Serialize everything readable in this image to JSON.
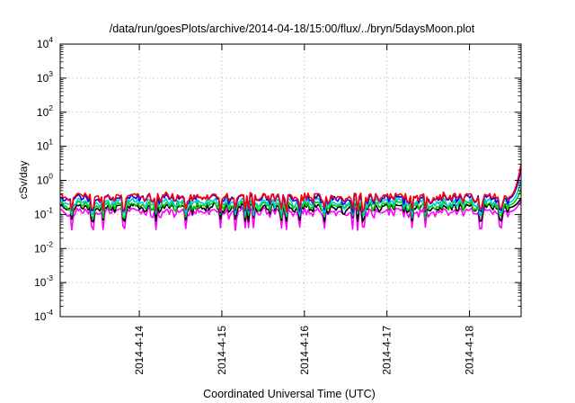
{
  "chart_data": {
    "type": "line",
    "title": "/data/run/goesPlots/archive/2014-04-18/15:00/flux/../bryn/5daysMoon.plot",
    "xlabel": "Coordinated Universal Time (UTC)",
    "ylabel": "cSv/day",
    "yscale": "log",
    "ylim": [
      0.0001,
      10000
    ],
    "xlim": [
      "2014-04-13 01:00",
      "2014-04-18 15:00"
    ],
    "x_ticks": [
      "2014-4-14",
      "2014-4-15",
      "2014-4-16",
      "2014-4-17",
      "2014-4-18"
    ],
    "y_ticks": [
      {
        "base": "10",
        "exp": "4"
      },
      {
        "base": "10",
        "exp": "3"
      },
      {
        "base": "10",
        "exp": "2"
      },
      {
        "base": "10",
        "exp": "1"
      },
      {
        "base": "10",
        "exp": "0"
      },
      {
        "base": "10",
        "exp": "-1"
      },
      {
        "base": "10",
        "exp": "-2"
      },
      {
        "base": "10",
        "exp": "-3"
      },
      {
        "base": "10",
        "exp": "-4"
      }
    ],
    "grid": true,
    "series": [
      {
        "color": "#ff00ff",
        "level": 0.12,
        "end": 0.25,
        "dip": 0.04
      },
      {
        "color": "#000000",
        "level": 0.16,
        "end": 0.3,
        "dip": 0.07
      },
      {
        "color": "#00cc00",
        "level": 0.19,
        "end": 0.55,
        "dip": 0.09
      },
      {
        "color": "#00cccc",
        "level": 0.23,
        "end": 0.95,
        "dip": 0.1
      },
      {
        "color": "#0000ff",
        "level": 0.3,
        "end": 2.2,
        "dip": 0.13
      },
      {
        "color": "#ff0000",
        "level": 0.33,
        "end": 3.1,
        "dip": 0.14
      }
    ]
  }
}
